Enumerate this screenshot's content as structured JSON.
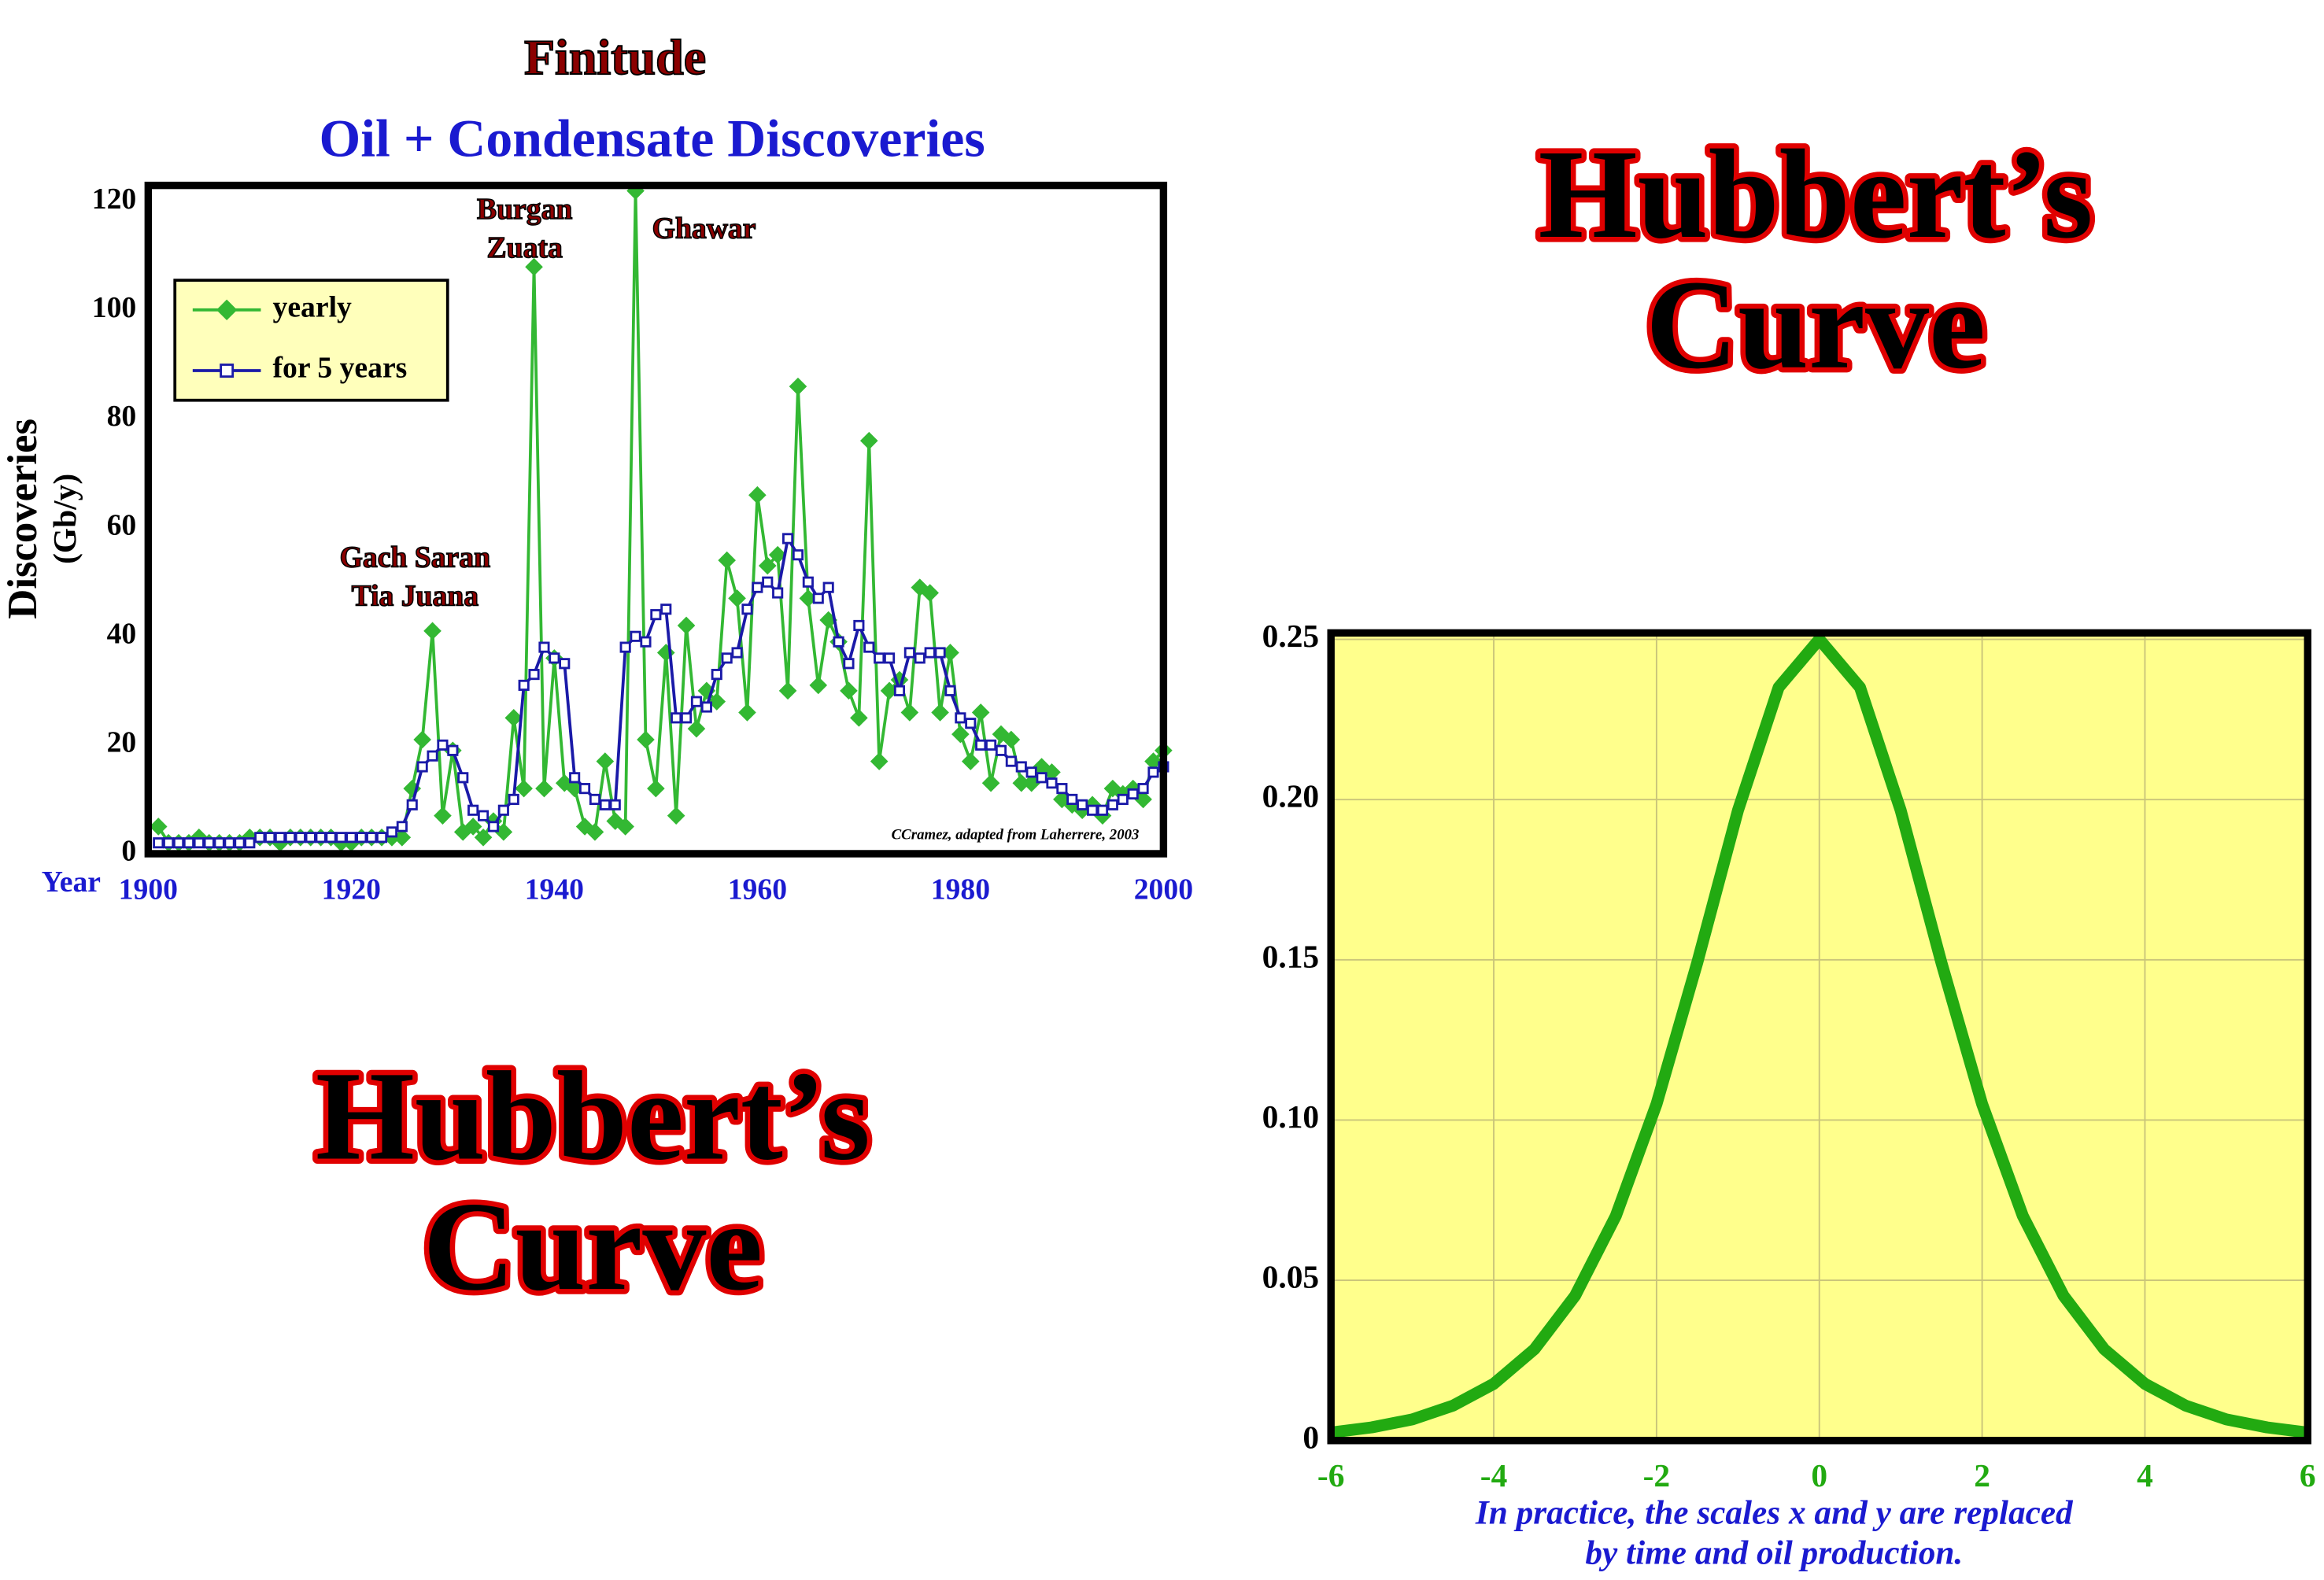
{
  "chart_data": [
    {
      "type": "line",
      "title": "Finitude",
      "subtitle": "Oil + Condensate Discoveries",
      "ylabel": "Discoveries",
      "ylabel_unit": "(Gb/y)",
      "xlabel": "Year",
      "xlim": [
        1900,
        2000
      ],
      "xticks": [
        1900,
        1920,
        1940,
        1960,
        1980,
        2000
      ],
      "ylim": [
        0,
        123
      ],
      "yticks": [
        0,
        20,
        40,
        60,
        80,
        100,
        120
      ],
      "legend": "upper left",
      "grid": false,
      "x": [
        1901,
        1902,
        1903,
        1904,
        1905,
        1906,
        1907,
        1908,
        1909,
        1910,
        1911,
        1912,
        1913,
        1914,
        1915,
        1916,
        1917,
        1918,
        1919,
        1920,
        1921,
        1922,
        1923,
        1924,
        1925,
        1926,
        1927,
        1928,
        1929,
        1930,
        1931,
        1932,
        1933,
        1934,
        1935,
        1936,
        1937,
        1938,
        1939,
        1940,
        1941,
        1942,
        1943,
        1944,
        1945,
        1946,
        1947,
        1948,
        1949,
        1950,
        1951,
        1952,
        1953,
        1954,
        1955,
        1956,
        1957,
        1958,
        1959,
        1960,
        1961,
        1962,
        1963,
        1964,
        1965,
        1966,
        1967,
        1968,
        1969,
        1970,
        1971,
        1972,
        1973,
        1974,
        1975,
        1976,
        1977,
        1978,
        1979,
        1980,
        1981,
        1982,
        1983,
        1984,
        1985,
        1986,
        1987,
        1988,
        1989,
        1990,
        1991,
        1992,
        1993,
        1994,
        1995,
        1996,
        1997,
        1998,
        1999,
        2000
      ],
      "series": [
        {
          "name": "yearly",
          "color": "#33b833",
          "marker": "diamond",
          "values": [
            5,
            2,
            2,
            2,
            3,
            2,
            2,
            2,
            2,
            3,
            3,
            3,
            2,
            3,
            3,
            3,
            3,
            3,
            2,
            2,
            3,
            3,
            3,
            3,
            3,
            12,
            21,
            41,
            7,
            19,
            4,
            5,
            3,
            6,
            4,
            25,
            12,
            108,
            12,
            36,
            13,
            12,
            5,
            4,
            17,
            6,
            5,
            122,
            21,
            12,
            37,
            7,
            42,
            23,
            30,
            28,
            54,
            47,
            26,
            66,
            53,
            55,
            30,
            86,
            47,
            31,
            43,
            39,
            30,
            25,
            76,
            17,
            30,
            32,
            26,
            49,
            48,
            26,
            37,
            22,
            17,
            26,
            13,
            22,
            21,
            13,
            13,
            16,
            15,
            10,
            9,
            8,
            9,
            7,
            12,
            11,
            12,
            10,
            17,
            19
          ]
        },
        {
          "name": "for 5 years",
          "color": "#1a1aa8",
          "marker": "square",
          "values": [
            2,
            2,
            2,
            2,
            2,
            2,
            2,
            2,
            2,
            2,
            3,
            3,
            3,
            3,
            3,
            3,
            3,
            3,
            3,
            3,
            3,
            3,
            3,
            4,
            5,
            9,
            16,
            18,
            20,
            19,
            14,
            8,
            7,
            5,
            8,
            10,
            31,
            33,
            38,
            36,
            35,
            14,
            12,
            10,
            9,
            9,
            38,
            40,
            39,
            44,
            45,
            25,
            25,
            28,
            27,
            33,
            36,
            37,
            45,
            49,
            50,
            48,
            58,
            55,
            50,
            47,
            49,
            39,
            35,
            42,
            38,
            36,
            36,
            30,
            37,
            36,
            37,
            37,
            30,
            25,
            24,
            20,
            20,
            19,
            17,
            16,
            15,
            14,
            13,
            12,
            10,
            9,
            8,
            8,
            9,
            10,
            11,
            12,
            15,
            16
          ]
        }
      ],
      "annotations": [
        "Burgan",
        "Zuata",
        "Ghawar",
        "Gach Saran",
        "Tia Juana"
      ],
      "credit": "CCramez, adapted from Laherrere, 2003"
    },
    {
      "type": "line",
      "xlim": [
        -6,
        6
      ],
      "xticks": [
        -6,
        -4,
        -2,
        0,
        2,
        4,
        6
      ],
      "ylim": [
        0,
        0.252
      ],
      "yticks": [
        0,
        0.05,
        {
          "value": 0.1,
          "label": "0.10"
        },
        0.15,
        {
          "value": 0.2,
          "label": "0.20"
        },
        0.25
      ],
      "grid": true,
      "background": "#ffff8c",
      "x": [
        -6,
        -5.5,
        -5,
        -4.5,
        -4,
        -3.5,
        -3,
        -2.5,
        -2,
        -1.5,
        -1,
        -0.5,
        0,
        0.5,
        1,
        1.5,
        2,
        2.5,
        3,
        3.5,
        4,
        4.5,
        5,
        5.5,
        6
      ],
      "series": [
        {
          "color": "#22aa11",
          "values": [
            0.0025,
            0.0041,
            0.0066,
            0.0109,
            0.0177,
            0.0285,
            0.0452,
            0.0701,
            0.105,
            0.1491,
            0.1966,
            0.235,
            0.25,
            0.235,
            0.1966,
            0.1491,
            0.105,
            0.0701,
            0.0452,
            0.0285,
            0.0177,
            0.0109,
            0.0066,
            0.0041,
            0.0025
          ]
        }
      ],
      "caption": [
        "In practice, the scales x and y are replaced",
        "by time and oil production."
      ]
    }
  ],
  "headings": [
    [
      "Hubbert’s",
      "Curve"
    ],
    [
      "Hubbert’s",
      "Curve"
    ]
  ]
}
